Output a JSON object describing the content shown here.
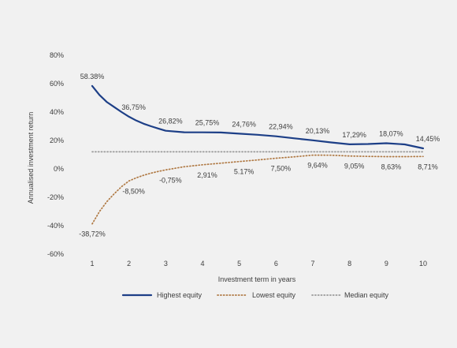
{
  "chart_data": {
    "type": "line",
    "x": [
      1,
      2,
      3,
      4,
      5,
      6,
      7,
      8,
      9,
      10
    ],
    "xlabel": "Investment term in years",
    "ylabel": "Annualised investment return",
    "ylim": [
      -60,
      80
    ],
    "yticks": [
      80,
      60,
      40,
      20,
      0,
      -20,
      -40,
      -60
    ],
    "ytick_labels": [
      "80%",
      "60%",
      "40%",
      "20%",
      "0%",
      "-20%",
      "-40%",
      "-60%"
    ],
    "xtick_labels": [
      "1",
      "2",
      "3",
      "4",
      "5",
      "6",
      "7",
      "8",
      "9",
      "10"
    ],
    "grid": false,
    "legend_position": "bottom",
    "series": [
      {
        "name": "Highest equity",
        "style": "solid",
        "color": "#1d3f87",
        "points": [
          [
            1,
            58.38
          ],
          [
            1.2,
            52
          ],
          [
            1.4,
            47
          ],
          [
            1.6,
            43.5
          ],
          [
            1.8,
            40
          ],
          [
            2,
            36.75
          ],
          [
            2.2,
            34
          ],
          [
            2.4,
            31.8
          ],
          [
            2.6,
            30
          ],
          [
            2.8,
            28.4
          ],
          [
            3,
            26.82
          ],
          [
            3.5,
            25.8
          ],
          [
            4,
            25.75
          ],
          [
            4.5,
            25.6
          ],
          [
            5,
            24.76
          ],
          [
            5.5,
            24
          ],
          [
            6,
            22.94
          ],
          [
            6.5,
            21.5
          ],
          [
            7,
            20.13
          ],
          [
            7.5,
            18.6
          ],
          [
            8,
            17.29
          ],
          [
            8.5,
            17.5
          ],
          [
            9,
            18.07
          ],
          [
            9.5,
            17.2
          ],
          [
            10,
            14.45
          ]
        ],
        "labels": [
          "58.38%",
          "36,75%",
          "26,82%",
          "25,75%",
          "24,76%",
          "22,94%",
          "20,13%",
          "17,29%",
          "18,07%",
          "14,45%"
        ]
      },
      {
        "name": "Lowest equity",
        "style": "dotted",
        "color": "#b07a45",
        "points": [
          [
            1,
            -38.72
          ],
          [
            1.2,
            -30
          ],
          [
            1.4,
            -23
          ],
          [
            1.6,
            -17.5
          ],
          [
            1.8,
            -12.5
          ],
          [
            2,
            -8.5
          ],
          [
            2.2,
            -6.3
          ],
          [
            2.4,
            -4.5
          ],
          [
            2.6,
            -3
          ],
          [
            2.8,
            -1.8
          ],
          [
            3,
            -0.75
          ],
          [
            3.5,
            1.5
          ],
          [
            4,
            2.91
          ],
          [
            4.5,
            4
          ],
          [
            5,
            5.17
          ],
          [
            5.5,
            6.3
          ],
          [
            6,
            7.5
          ],
          [
            6.5,
            8.5
          ],
          [
            7,
            9.64
          ],
          [
            7.5,
            9.6
          ],
          [
            8,
            9.05
          ],
          [
            8.5,
            8.8
          ],
          [
            9,
            8.63
          ],
          [
            9.5,
            8.6
          ],
          [
            10,
            8.71
          ]
        ],
        "labels": [
          "-38,72%",
          "-8,50%",
          "-0,75%",
          "2,91%",
          "5.17%",
          "7,50%",
          "9,64%",
          "9,05%",
          "8,63%",
          "8,71%"
        ]
      },
      {
        "name": "Median equity",
        "style": "dotted",
        "color": "#9a9a9a",
        "points": [
          [
            1,
            12
          ],
          [
            10,
            12
          ]
        ],
        "labels": []
      }
    ]
  }
}
